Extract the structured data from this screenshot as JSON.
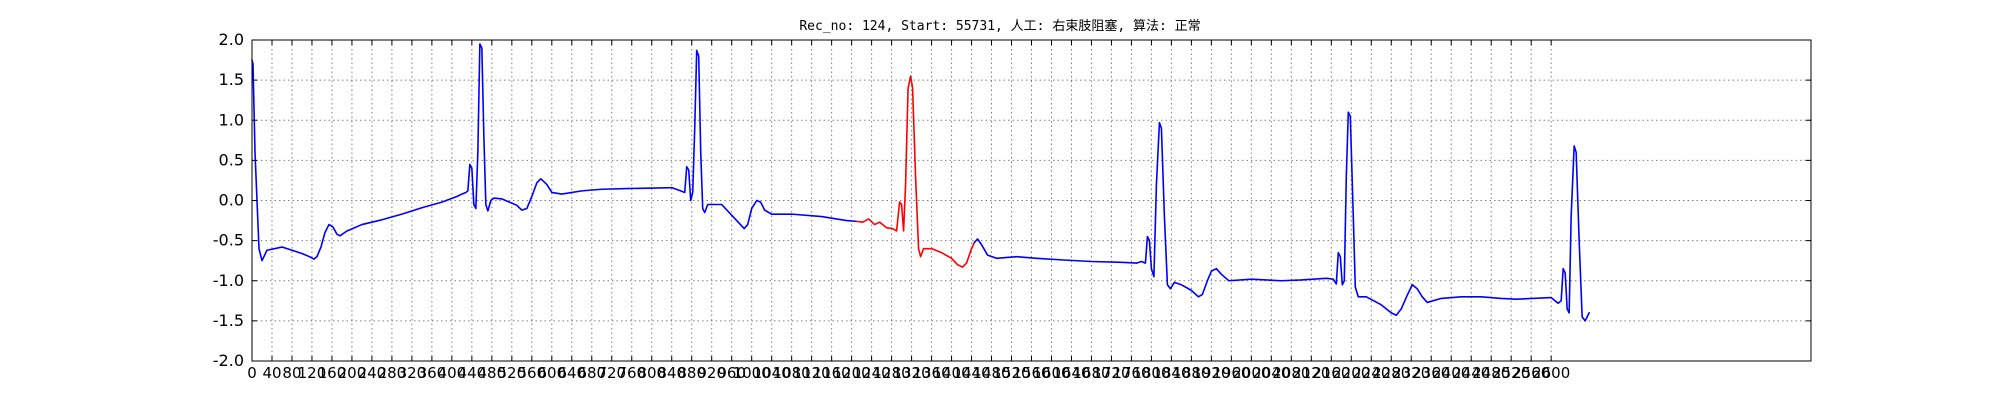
{
  "chart_data": {
    "type": "line",
    "title": "Rec_no: 124, Start: 55731, 人工: 右束肢阻塞, 算法: 正常",
    "xlabel": "",
    "ylabel": "",
    "xlim": [
      0,
      3120
    ],
    "ylim": [
      -2.0,
      2.0
    ],
    "yticks": [
      "-2.0",
      "-1.5",
      "-1.0",
      "-0.5",
      "0.0",
      "0.5",
      "1.0",
      "1.5",
      "2.0"
    ],
    "xticks": [
      "0",
      "40",
      "80",
      "120",
      "160",
      "200",
      "240",
      "280",
      "320",
      "360",
      "400",
      "440",
      "480",
      "520",
      "560",
      "600",
      "640",
      "680",
      "720",
      "760",
      "800",
      "840",
      "880",
      "920",
      "960",
      "1000",
      "1040",
      "1080",
      "1120",
      "1160",
      "1200",
      "1240",
      "1280",
      "1320",
      "1360",
      "1400",
      "1440",
      "1480",
      "1520",
      "1560",
      "1600",
      "1640",
      "1680",
      "1720",
      "1760",
      "1800",
      "1840",
      "1880",
      "1920",
      "1960",
      "2000",
      "2040",
      "2080",
      "2120",
      "2160",
      "2200",
      "2240",
      "2280",
      "2320",
      "2360",
      "2400",
      "2440",
      "2480",
      "2520",
      "2560",
      "2600"
    ],
    "grid": true,
    "series": [
      {
        "color": "#0000ff",
        "segments": [
          [
            [
              0,
              1.75
            ],
            [
              2,
              1.7
            ],
            [
              6,
              0.6
            ],
            [
              14,
              -0.6
            ],
            [
              20,
              -0.75
            ],
            [
              30,
              -0.62
            ],
            [
              60,
              -0.58
            ],
            [
              80,
              -0.62
            ],
            [
              100,
              -0.66
            ],
            [
              115,
              -0.7
            ],
            [
              124,
              -0.73
            ],
            [
              130,
              -0.7
            ],
            [
              138,
              -0.58
            ],
            [
              146,
              -0.4
            ],
            [
              154,
              -0.3
            ],
            [
              162,
              -0.33
            ],
            [
              170,
              -0.42
            ],
            [
              176,
              -0.44
            ],
            [
              190,
              -0.38
            ],
            [
              220,
              -0.3
            ],
            [
              260,
              -0.24
            ],
            [
              300,
              -0.17
            ],
            [
              340,
              -0.09
            ],
            [
              380,
              -0.02
            ],
            [
              410,
              0.05
            ],
            [
              420,
              0.08
            ],
            [
              428,
              0.1
            ],
            [
              432,
              0.12
            ],
            [
              436,
              0.45
            ],
            [
              440,
              0.4
            ],
            [
              444,
              -0.05
            ],
            [
              448,
              -0.1
            ],
            [
              452,
              0.6
            ],
            [
              456,
              1.95
            ],
            [
              460,
              1.9
            ],
            [
              464,
              0.8
            ],
            [
              468,
              -0.05
            ],
            [
              472,
              -0.13
            ],
            [
              478,
              0.0
            ],
            [
              484,
              0.03
            ],
            [
              500,
              0.02
            ],
            [
              530,
              -0.06
            ],
            [
              540,
              -0.12
            ],
            [
              550,
              -0.1
            ],
            [
              560,
              0.05
            ],
            [
              570,
              0.22
            ],
            [
              578,
              0.27
            ],
            [
              590,
              0.2
            ],
            [
              600,
              0.1
            ],
            [
              620,
              0.08
            ],
            [
              660,
              0.12
            ],
            [
              700,
              0.14
            ],
            [
              760,
              0.15
            ],
            [
              840,
              0.16
            ],
            [
              858,
              0.12
            ],
            [
              866,
              0.1
            ],
            [
              870,
              0.42
            ],
            [
              874,
              0.38
            ],
            [
              878,
              0.0
            ],
            [
              882,
              0.1
            ],
            [
              886,
              0.9
            ],
            [
              890,
              1.87
            ],
            [
              894,
              1.8
            ],
            [
              898,
              0.6
            ],
            [
              902,
              -0.1
            ],
            [
              906,
              -0.15
            ],
            [
              912,
              -0.05
            ],
            [
              940,
              -0.05
            ],
            [
              970,
              -0.25
            ],
            [
              985,
              -0.35
            ],
            [
              992,
              -0.3
            ],
            [
              1000,
              -0.1
            ],
            [
              1010,
              0.0
            ],
            [
              1018,
              -0.02
            ],
            [
              1026,
              -0.12
            ],
            [
              1040,
              -0.17
            ],
            [
              1080,
              -0.17
            ],
            [
              1140,
              -0.2
            ],
            [
              1190,
              -0.25
            ],
            [
              1210,
              -0.26
            ]
          ],
          [
            [
              1770,
              -0.78
            ],
            [
              1780,
              -0.76
            ],
            [
              1788,
              -0.78
            ],
            [
              1792,
              -0.45
            ],
            [
              1796,
              -0.5
            ],
            [
              1800,
              -0.85
            ],
            [
              1805,
              -0.95
            ],
            [
              1810,
              0.2
            ],
            [
              1816,
              0.97
            ],
            [
              1820,
              0.9
            ],
            [
              1826,
              -0.2
            ],
            [
              1832,
              -1.05
            ],
            [
              1838,
              -1.1
            ],
            [
              1846,
              -1.02
            ],
            [
              1860,
              -1.05
            ],
            [
              1880,
              -1.12
            ],
            [
              1894,
              -1.2
            ],
            [
              1902,
              -1.17
            ],
            [
              1912,
              -1.0
            ],
            [
              1920,
              -0.88
            ],
            [
              1930,
              -0.85
            ],
            [
              1940,
              -0.92
            ],
            [
              1955,
              -1.0
            ],
            [
              2000,
              -0.98
            ],
            [
              2060,
              -1.0
            ],
            [
              2100,
              -0.99
            ],
            [
              2150,
              -0.97
            ],
            [
              2164,
              -0.98
            ],
            [
              2170,
              -1.04
            ],
            [
              2174,
              -0.65
            ],
            [
              2178,
              -0.7
            ],
            [
              2182,
              -1.05
            ],
            [
              2186,
              -1.0
            ],
            [
              2190,
              0.3
            ],
            [
              2194,
              1.1
            ],
            [
              2198,
              1.05
            ],
            [
              2204,
              -0.2
            ],
            [
              2208,
              -1.08
            ],
            [
              2214,
              -1.2
            ],
            [
              2230,
              -1.2
            ],
            [
              2260,
              -1.3
            ],
            [
              2280,
              -1.4
            ],
            [
              2290,
              -1.43
            ],
            [
              2300,
              -1.35
            ],
            [
              2312,
              -1.18
            ],
            [
              2322,
              -1.05
            ],
            [
              2332,
              -1.1
            ],
            [
              2342,
              -1.2
            ],
            [
              2352,
              -1.27
            ],
            [
              2380,
              -1.22
            ],
            [
              2420,
              -1.2
            ],
            [
              2460,
              -1.2
            ],
            [
              2500,
              -1.22
            ],
            [
              2530,
              -1.23
            ],
            [
              2600,
              -1.21
            ],
            [
              2614,
              -1.28
            ],
            [
              2620,
              -1.25
            ],
            [
              2624,
              -0.85
            ],
            [
              2628,
              -0.9
            ],
            [
              2632,
              -1.35
            ],
            [
              2636,
              -1.4
            ],
            [
              2640,
              -0.2
            ],
            [
              2646,
              0.68
            ],
            [
              2650,
              0.6
            ],
            [
              2656,
              -0.5
            ],
            [
              2662,
              -1.45
            ],
            [
              2668,
              -1.5
            ],
            [
              2676,
              -1.4
            ]
          ]
        ]
      },
      {
        "color": "#ff0000",
        "segments": [
          [
            [
              1210,
              -0.26
            ],
            [
              1222,
              -0.27
            ],
            [
              1234,
              -0.23
            ],
            [
              1246,
              -0.3
            ],
            [
              1256,
              -0.27
            ],
            [
              1270,
              -0.34
            ],
            [
              1282,
              -0.35
            ],
            [
              1290,
              -0.38
            ],
            [
              1296,
              -0.02
            ],
            [
              1300,
              -0.05
            ],
            [
              1304,
              -0.38
            ],
            [
              1308,
              0.2
            ],
            [
              1313,
              1.4
            ],
            [
              1318,
              1.55
            ],
            [
              1322,
              1.4
            ],
            [
              1328,
              0.3
            ],
            [
              1334,
              -0.6
            ],
            [
              1338,
              -0.7
            ],
            [
              1344,
              -0.6
            ],
            [
              1360,
              -0.6
            ],
            [
              1380,
              -0.65
            ],
            [
              1400,
              -0.72
            ],
            [
              1412,
              -0.8
            ],
            [
              1422,
              -0.83
            ],
            [
              1430,
              -0.78
            ],
            [
              1440,
              -0.6
            ],
            [
              1446,
              -0.52
            ]
          ]
        ]
      },
      {
        "color": "#0000ff",
        "segments": [
          [
            [
              1446,
              -0.52
            ],
            [
              1452,
              -0.48
            ],
            [
              1460,
              -0.55
            ],
            [
              1472,
              -0.68
            ],
            [
              1490,
              -0.72
            ],
            [
              1530,
              -0.7
            ],
            [
              1570,
              -0.72
            ],
            [
              1620,
              -0.74
            ],
            [
              1680,
              -0.76
            ],
            [
              1740,
              -0.77
            ],
            [
              1770,
              -0.78
            ]
          ]
        ]
      }
    ]
  }
}
